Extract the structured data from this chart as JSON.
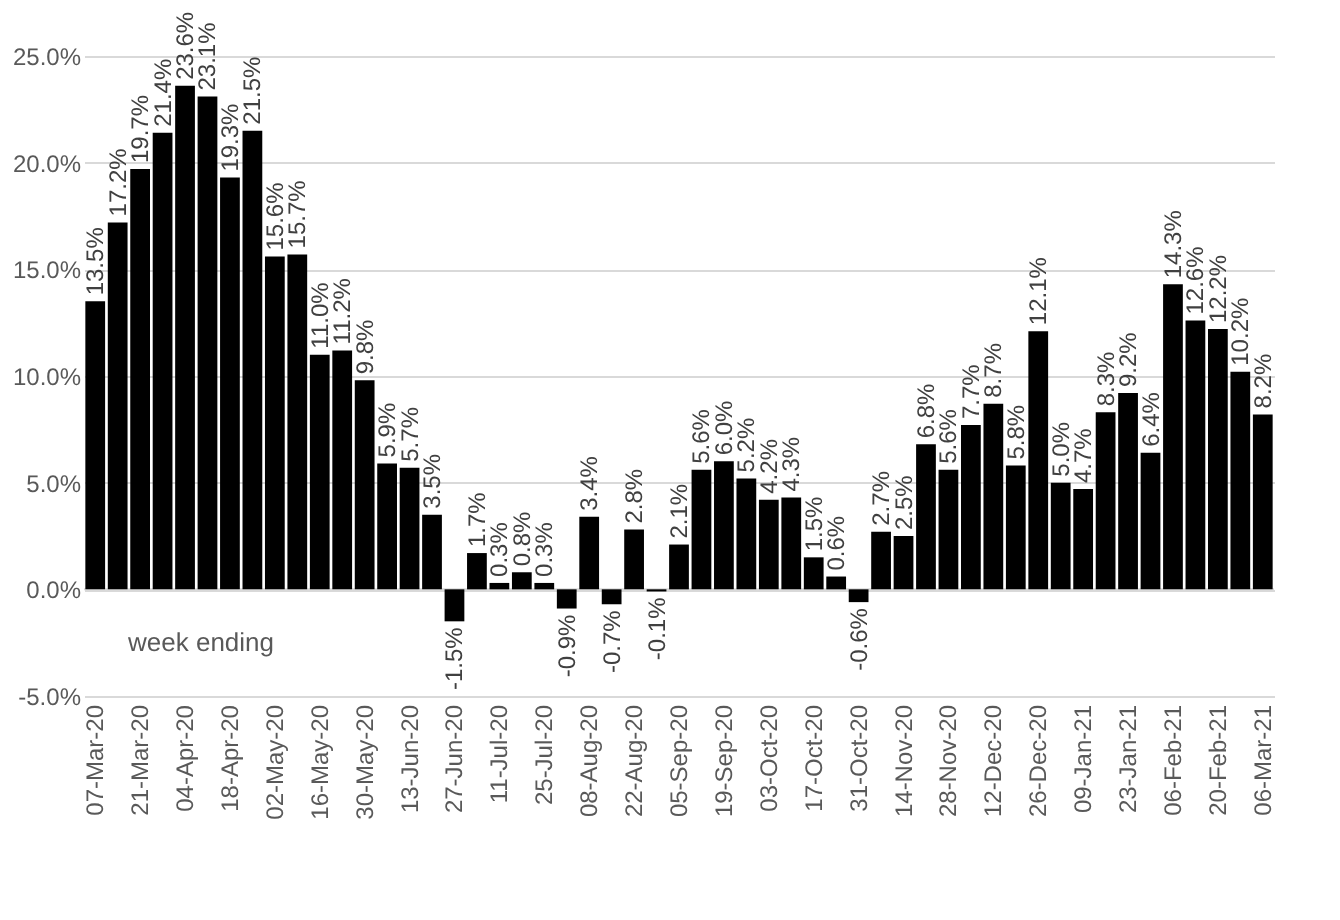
{
  "chart_data": {
    "type": "bar",
    "xlabel": "week ending",
    "categories": [
      "07-Mar-20",
      null,
      "21-Mar-20",
      null,
      "04-Apr-20",
      null,
      "18-Apr-20",
      null,
      "02-May-20",
      null,
      "16-May-20",
      null,
      "30-May-20",
      null,
      "13-Jun-20",
      null,
      "27-Jun-20",
      null,
      "11-Jul-20",
      null,
      "25-Jul-20",
      null,
      "08-Aug-20",
      null,
      "22-Aug-20",
      null,
      "05-Sep-20",
      null,
      "19-Sep-20",
      null,
      "03-Oct-20",
      null,
      "17-Oct-20",
      null,
      "31-Oct-20",
      null,
      "14-Nov-20",
      null,
      "28-Nov-20",
      null,
      "12-Dec-20",
      null,
      "26-Dec-20",
      null,
      "09-Jan-21",
      null,
      "23-Jan-21",
      null,
      "06-Feb-21",
      null,
      "20-Feb-21",
      null,
      "06-Mar-21"
    ],
    "series": [
      {
        "color": "#000000",
        "values": [
          13.5,
          17.2,
          19.7,
          21.4,
          23.6,
          23.1,
          19.3,
          21.5,
          15.6,
          15.7,
          11.0,
          11.2,
          9.8,
          5.9,
          5.7,
          3.5,
          -1.5,
          1.7,
          0.3,
          0.8,
          0.3,
          -0.9,
          3.4,
          -0.7,
          2.8,
          -0.1,
          2.1,
          5.6,
          6.0,
          5.2,
          4.2,
          4.3,
          1.5,
          0.6,
          -0.6,
          2.7,
          2.5,
          6.8,
          5.6,
          7.7,
          8.7,
          5.8,
          12.1,
          5.0,
          4.7,
          8.3,
          9.2,
          6.4,
          14.3,
          12.6,
          12.2,
          10.2,
          8.2
        ],
        "value_labels": [
          "13.5%",
          "17.2%",
          "19.7%",
          "21.4%",
          "23.6%",
          "23.1%",
          "19.3%",
          "21.5%",
          "15.6%",
          "15.7%",
          "11.0%",
          "11.2%",
          "9.8%",
          "5.9%",
          "5.7%",
          "3.5%",
          "-1.5%",
          "1.7%",
          "0.3%",
          "0.8%",
          "0.3%",
          "-0.9%",
          "3.4%",
          "-0.7%",
          "2.8%",
          "-0.1%",
          "2.1%",
          "5.6%",
          "6.0%",
          "5.2%",
          "4.2%",
          "4.3%",
          "1.5%",
          "0.6%",
          "-0.6%",
          "2.7%",
          "2.5%",
          "6.8%",
          "5.6%",
          "7.7%",
          "8.7%",
          "5.8%",
          "12.1%",
          "5.0%",
          "4.7%",
          "8.3%",
          "9.2%",
          "6.4%",
          "14.3%",
          "12.6%",
          "12.2%",
          "10.2%",
          "8.2%"
        ]
      }
    ],
    "ylim": [
      -5,
      25
    ],
    "yticks": [
      {
        "value": -5,
        "label": "-5.0%"
      },
      {
        "value": 0,
        "label": "0.0%"
      },
      {
        "value": 5,
        "label": "5.0%"
      },
      {
        "value": 10,
        "label": "10.0%"
      },
      {
        "value": 15,
        "label": "15.0%"
      },
      {
        "value": 20,
        "label": "20.0%"
      },
      {
        "value": 25,
        "label": "25.0%"
      }
    ],
    "grid": "y"
  }
}
